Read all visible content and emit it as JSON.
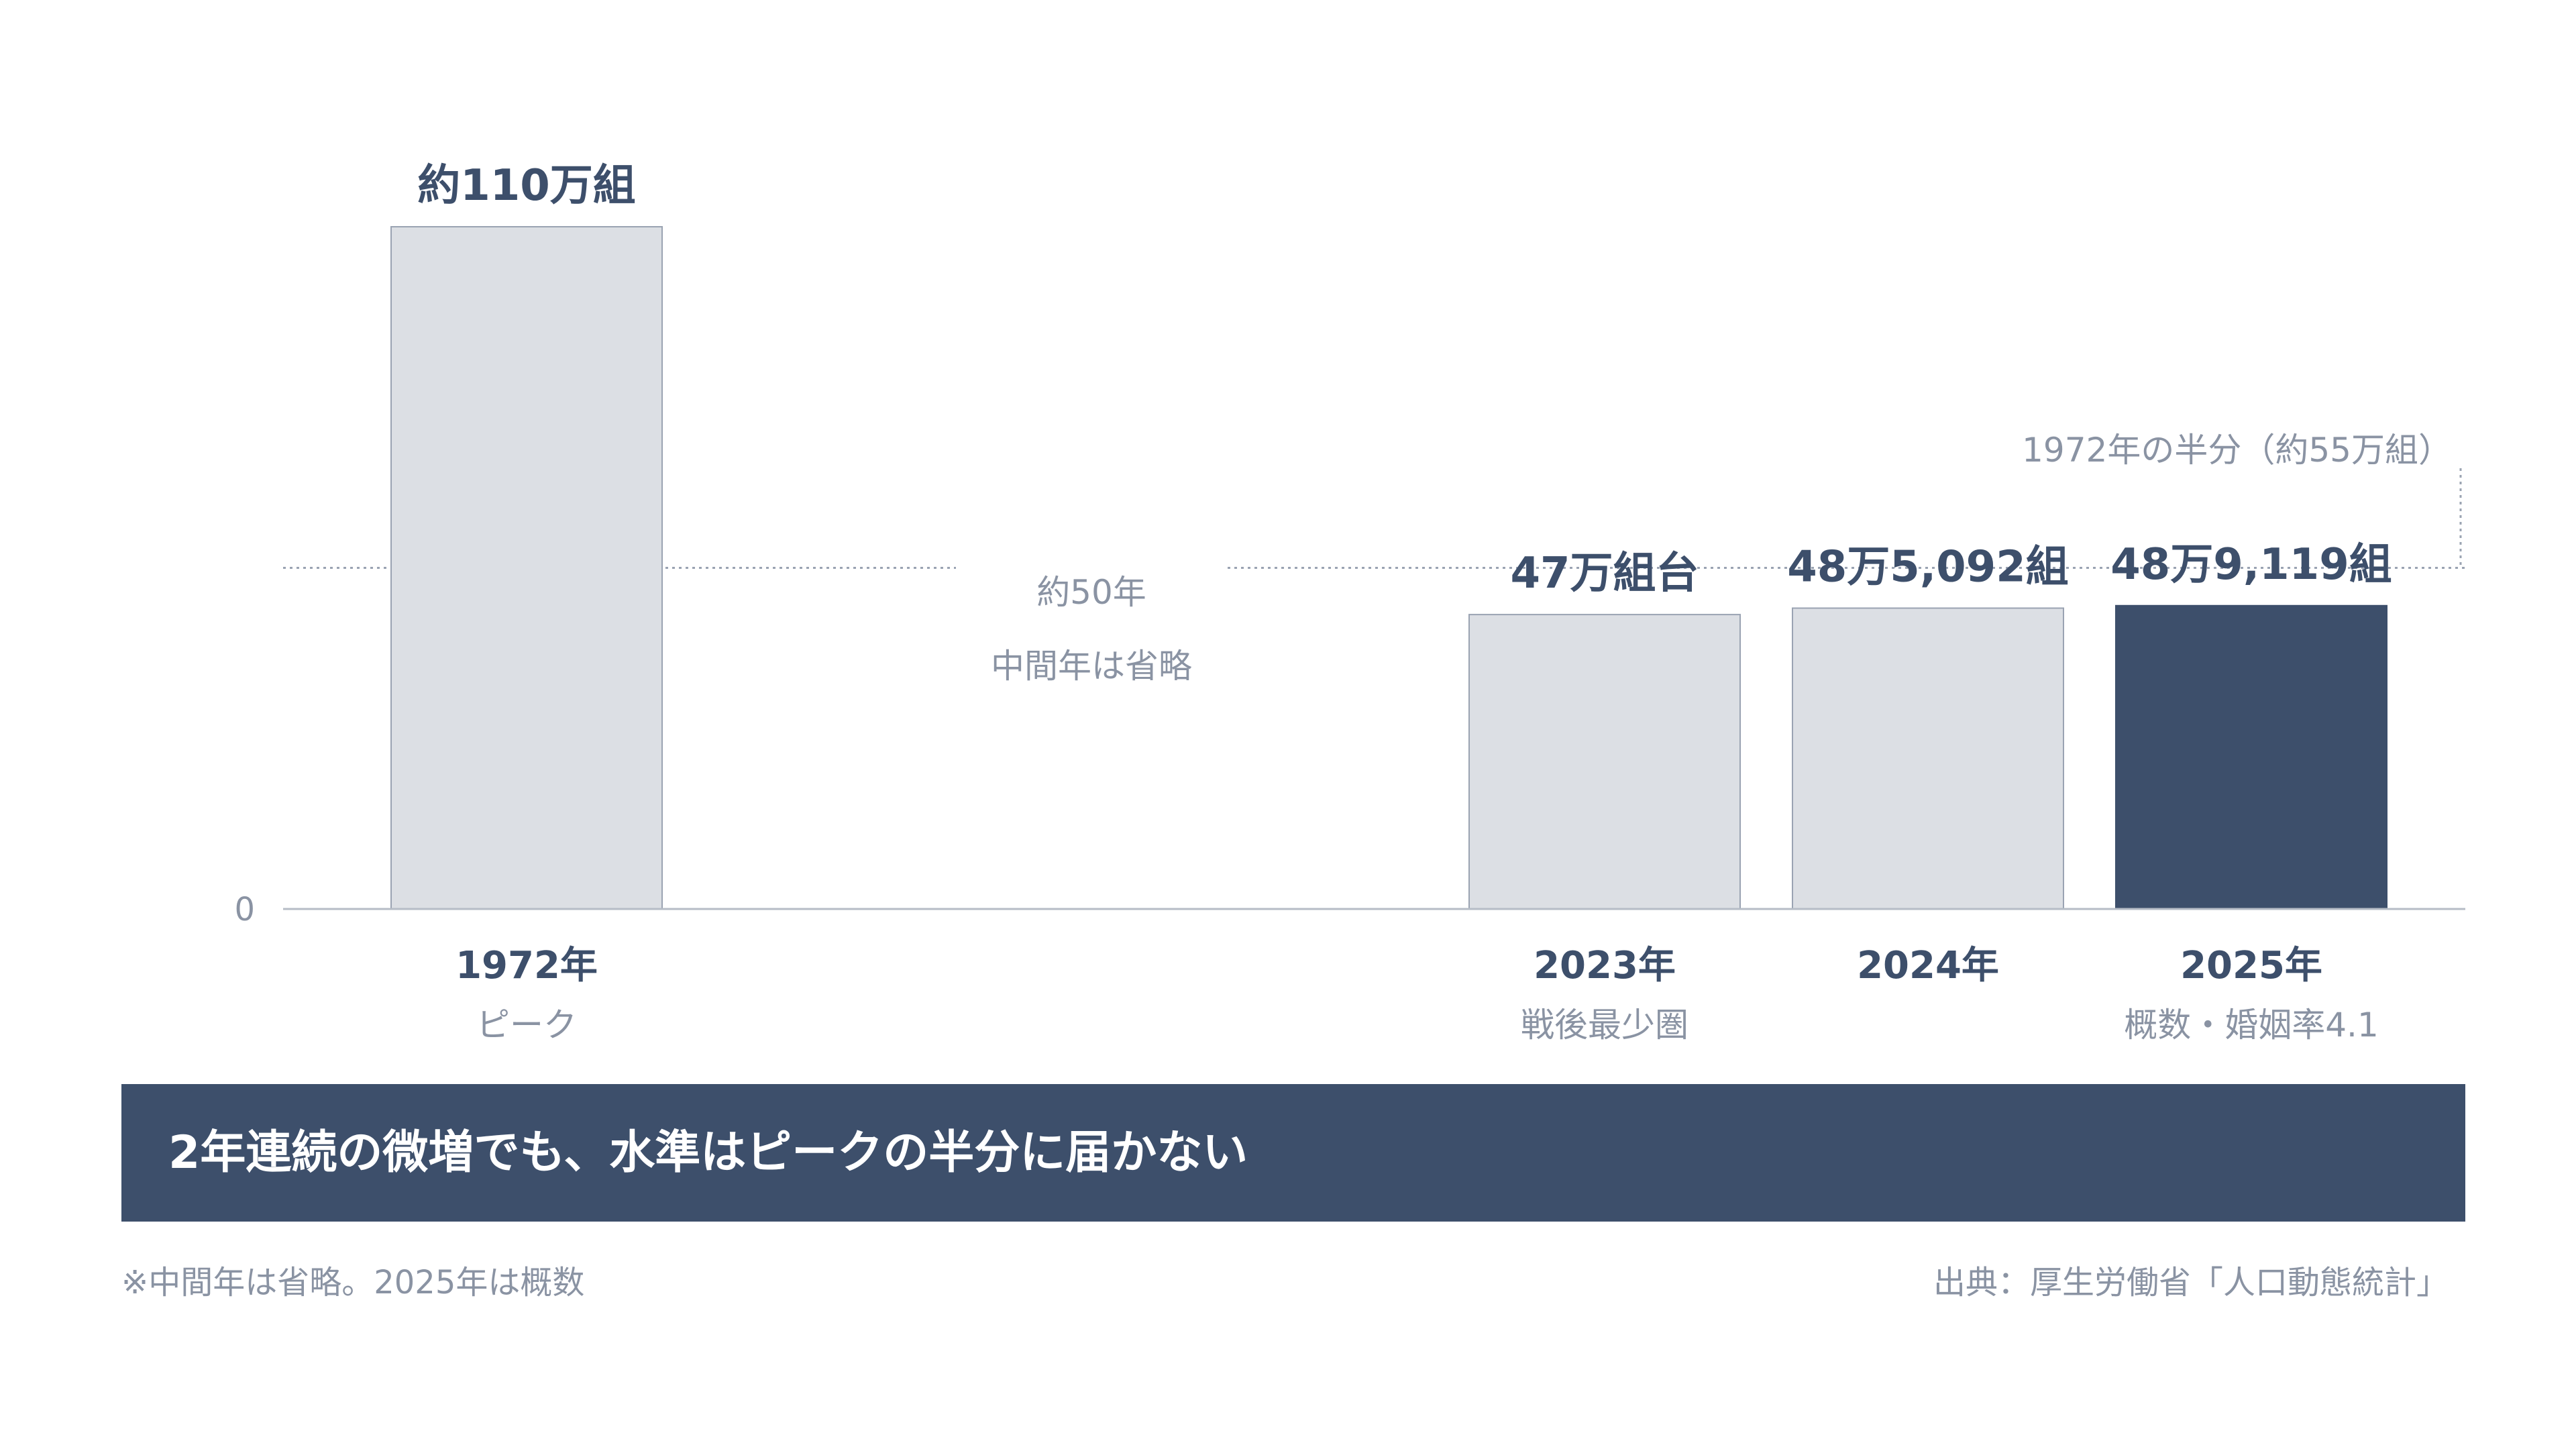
{
  "chart_data": {
    "type": "bar",
    "categories": [
      "1972年",
      "2023年",
      "2024年",
      "2025年"
    ],
    "sublabels": [
      "ピーク",
      "戦後最少圏",
      "",
      "概数・婚姻率4.1"
    ],
    "values": [
      1100000,
      474717,
      485092,
      489119
    ],
    "value_labels": [
      "約110万組",
      "47万組台",
      "48万5,092組",
      "48万9,119組"
    ],
    "highlight_index": 3,
    "ylim": [
      0,
      1100000
    ],
    "y_ticks": [
      "0"
    ],
    "reference_line": {
      "value": 550000,
      "label": "1972年の半分（約55万組）"
    },
    "gap_note": {
      "line1": "約50年",
      "line2": "中間年は省略"
    },
    "grid": false,
    "legend": "none",
    "colors": {
      "bar": "#dcdfe4",
      "bar_stroke": "#9aa3b2",
      "highlight": "#3d4f6b",
      "text": "#3d4f6b",
      "muted": "#8a93a3"
    }
  },
  "banner": {
    "text": "2年連続の微増でも、水準はピークの半分に届かない"
  },
  "footnote": "※中間年は省略。2025年は概数",
  "source": "出典：厚生労働省「人口動態統計」"
}
